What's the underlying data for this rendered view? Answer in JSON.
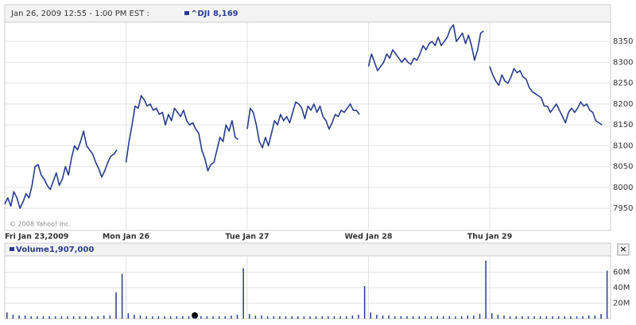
{
  "header": {
    "title": "Jan 26, 2009 12:55 - 1:00 PM EST :",
    "copyright": "© 2008 Yahoo! Inc.",
    "close": "×"
  },
  "chart_data": [
    {
      "type": "line",
      "color": "#263c8f",
      "grid": true,
      "xlim": [
        0,
        5
      ],
      "ylim": [
        7897,
        8396
      ],
      "xticks": [
        {
          "value": 0,
          "label": "Fri Jan 23,2009"
        },
        {
          "value": 1,
          "label": "Mon Jan 26"
        },
        {
          "value": 2,
          "label": "Tue Jan 27"
        },
        {
          "value": 3,
          "label": "Wed Jan 28"
        },
        {
          "value": 4,
          "label": "Thu Jan 29"
        }
      ],
      "yticks": [
        7950,
        8000,
        8050,
        8100,
        8150,
        8200,
        8250,
        8300,
        8350
      ],
      "series": [
        {
          "name": "^DJI",
          "legend_value": "8,169",
          "color": "#263c8f",
          "x": [
            0,
            0.025,
            0.05,
            0.075,
            0.1,
            0.125,
            0.15,
            0.175,
            0.2,
            0.225,
            0.25,
            0.275,
            0.3,
            0.325,
            0.35,
            0.375,
            0.4,
            0.425,
            0.45,
            0.475,
            0.5,
            0.525,
            0.55,
            0.575,
            0.6,
            0.625,
            0.65,
            0.675,
            0.7,
            0.725,
            0.75,
            0.775,
            0.8,
            0.825,
            0.85,
            0.875,
            0.9,
            0.925,
            0.95,
            1,
            1.025,
            1.05,
            1.075,
            1.1,
            1.125,
            1.15,
            1.175,
            1.2,
            1.225,
            1.25,
            1.275,
            1.3,
            1.325,
            1.35,
            1.375,
            1.4,
            1.425,
            1.45,
            1.475,
            1.5,
            1.525,
            1.55,
            1.575,
            1.6,
            1.625,
            1.65,
            1.675,
            1.7,
            1.725,
            1.75,
            1.775,
            1.8,
            1.825,
            1.85,
            1.875,
            1.9,
            1.925,
            1.95,
            2,
            2.025,
            2.05,
            2.075,
            2.1,
            2.125,
            2.15,
            2.175,
            2.2,
            2.225,
            2.25,
            2.275,
            2.3,
            2.325,
            2.35,
            2.375,
            2.4,
            2.425,
            2.45,
            2.475,
            2.5,
            2.525,
            2.55,
            2.575,
            2.6,
            2.625,
            2.65,
            2.675,
            2.7,
            2.725,
            2.75,
            2.775,
            2.8,
            2.825,
            2.85,
            2.875,
            2.9,
            2.925,
            2.95,
            3,
            3.025,
            3.05,
            3.075,
            3.1,
            3.125,
            3.15,
            3.175,
            3.2,
            3.225,
            3.25,
            3.275,
            3.3,
            3.325,
            3.35,
            3.375,
            3.4,
            3.425,
            3.45,
            3.475,
            3.5,
            3.525,
            3.55,
            3.575,
            3.6,
            3.625,
            3.65,
            3.675,
            3.7,
            3.725,
            3.75,
            3.775,
            3.8,
            3.825,
            3.85,
            3.875,
            3.9,
            3.925,
            3.95,
            3.975,
            4,
            4.025,
            4.05,
            4.075,
            4.1,
            4.125,
            4.15,
            4.175,
            4.2,
            4.225,
            4.25,
            4.275,
            4.3,
            4.325,
            4.35,
            4.375,
            4.4,
            4.425,
            4.45,
            4.475,
            4.5,
            4.525,
            4.55,
            4.575,
            4.6,
            4.625,
            4.65,
            4.675,
            4.7,
            4.725,
            4.75,
            4.775,
            4.8,
            4.825,
            4.85,
            4.875,
            4.9,
            4.925
          ],
          "values": [
            7960,
            7975,
            7955,
            7990,
            7975,
            7950,
            7965,
            7985,
            7975,
            8005,
            8050,
            8055,
            8030,
            8020,
            8005,
            7995,
            8015,
            8035,
            8005,
            8020,
            8050,
            8030,
            8070,
            8100,
            8090,
            8110,
            8135,
            8100,
            8090,
            8080,
            8060,
            8045,
            8025,
            8040,
            8060,
            8075,
            8080,
            8090,
            null,
            8060,
            8110,
            8150,
            8195,
            8190,
            8220,
            8210,
            8195,
            8200,
            8185,
            8190,
            8175,
            8180,
            8150,
            8175,
            8160,
            8190,
            8180,
            8170,
            8185,
            8160,
            8150,
            8155,
            8140,
            8130,
            8090,
            8070,
            8040,
            8055,
            8060,
            8090,
            8120,
            8110,
            8150,
            8135,
            8160,
            8120,
            8115,
            null,
            8140,
            8190,
            8180,
            8150,
            8110,
            8095,
            8120,
            8100,
            8130,
            8160,
            8150,
            8175,
            8160,
            8170,
            8155,
            8180,
            8205,
            8200,
            8190,
            8165,
            8195,
            8185,
            8200,
            8180,
            8195,
            8170,
            8160,
            8140,
            8155,
            8175,
            8170,
            8185,
            8180,
            8190,
            8200,
            8185,
            8185,
            8175,
            null,
            8290,
            8320,
            8300,
            8280,
            8290,
            8300,
            8320,
            8310,
            8330,
            8320,
            8310,
            8300,
            8310,
            8300,
            8295,
            8310,
            8305,
            8320,
            8340,
            8330,
            8345,
            8350,
            8340,
            8360,
            8340,
            8350,
            8360,
            8380,
            8390,
            8350,
            8360,
            8370,
            8345,
            8365,
            8340,
            8305,
            8330,
            8370,
            8375,
            null,
            8290,
            8270,
            8255,
            8245,
            8270,
            8255,
            8250,
            8265,
            8285,
            8275,
            8280,
            8265,
            8260,
            8240,
            8230,
            8225,
            8220,
            8215,
            8195,
            8195,
            8180,
            8190,
            8200,
            8185,
            8170,
            8155,
            8180,
            8190,
            8180,
            8190,
            8205,
            8195,
            8200,
            8185,
            8180,
            8160,
            8155,
            8150
          ]
        }
      ]
    },
    {
      "type": "bar",
      "color": "#263c8f",
      "grid": true,
      "xlim": [
        0,
        5
      ],
      "ylim": [
        0,
        81
      ],
      "yticks": [
        {
          "value": 20,
          "label": "20M"
        },
        {
          "value": 40,
          "label": "40M"
        },
        {
          "value": 60,
          "label": "60M"
        }
      ],
      "series": [
        {
          "name": "Volume",
          "legend_value": "1,907,000",
          "color": "#263c8f",
          "x": [
            0,
            0.05,
            0.1,
            0.15,
            0.2,
            0.25,
            0.3,
            0.35,
            0.4,
            0.45,
            0.5,
            0.55,
            0.6,
            0.65,
            0.7,
            0.75,
            0.8,
            0.85,
            0.9,
            0.95,
            1,
            1.05,
            1.1,
            1.15,
            1.2,
            1.25,
            1.3,
            1.35,
            1.4,
            1.45,
            1.5,
            1.55,
            1.6,
            1.65,
            1.7,
            1.75,
            1.8,
            1.85,
            1.9,
            1.95,
            2,
            2.05,
            2.1,
            2.15,
            2.2,
            2.25,
            2.3,
            2.35,
            2.4,
            2.45,
            2.5,
            2.55,
            2.6,
            2.65,
            2.7,
            2.75,
            2.8,
            2.85,
            2.9,
            2.95,
            3,
            3.05,
            3.1,
            3.15,
            3.2,
            3.25,
            3.3,
            3.35,
            3.4,
            3.45,
            3.5,
            3.55,
            3.6,
            3.65,
            3.7,
            3.75,
            3.8,
            3.85,
            3.9,
            3.95,
            4,
            4.05,
            4.1,
            4.15,
            4.2,
            4.25,
            4.3,
            4.35,
            4.4,
            4.45,
            4.5,
            4.55,
            4.6,
            4.65,
            4.7,
            4.75,
            4.8,
            4.85,
            4.9,
            4.95
          ],
          "values": [
            8,
            5,
            4,
            4,
            3,
            3,
            3,
            3,
            3,
            3,
            3,
            3,
            3,
            3,
            3,
            3,
            4,
            4,
            34,
            58,
            7,
            5,
            4,
            3,
            3,
            3,
            3,
            3,
            3,
            3,
            3,
            3,
            3,
            3,
            3,
            3,
            3,
            4,
            5,
            65,
            6,
            4,
            4,
            3,
            3,
            3,
            3,
            3,
            3,
            3,
            3,
            3,
            3,
            3,
            3,
            3,
            3,
            4,
            5,
            42,
            8,
            5,
            4,
            4,
            3,
            3,
            3,
            3,
            3,
            3,
            3,
            3,
            3,
            3,
            3,
            3,
            4,
            4,
            6,
            75,
            7,
            5,
            4,
            3,
            3,
            3,
            3,
            3,
            3,
            3,
            3,
            3,
            3,
            3,
            3,
            3,
            4,
            4,
            6,
            62
          ]
        }
      ]
    }
  ]
}
